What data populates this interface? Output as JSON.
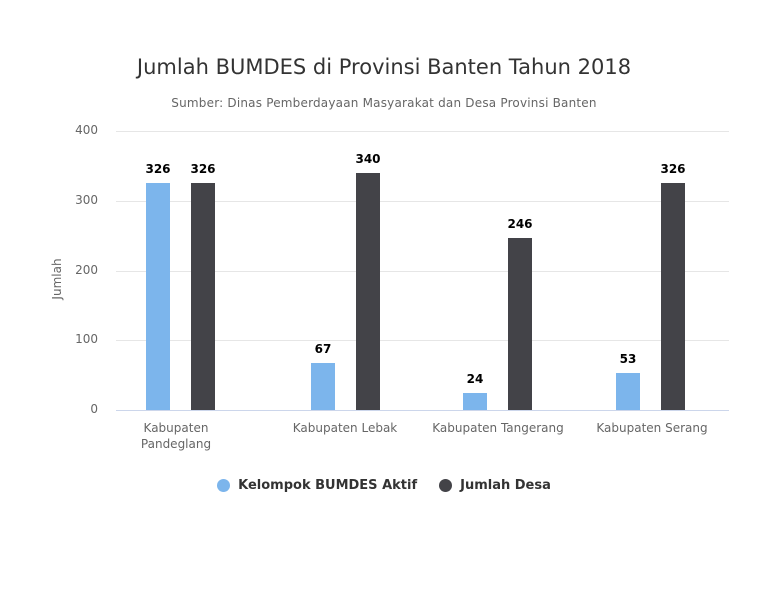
{
  "chart_data": {
    "type": "bar",
    "title": "Jumlah BUMDES di Provinsi Banten Tahun 2018",
    "subtitle": "Sumber: Dinas Pemberdayaan Masyarakat dan Desa Provinsi Banten",
    "xlabel": "",
    "ylabel": "Jumlah",
    "ylim": [
      0,
      400
    ],
    "yticks": [
      "0",
      "100",
      "200",
      "300",
      "400"
    ],
    "grid": true,
    "legend_position": "bottom",
    "categories": [
      "Kabupaten Pandeglang",
      "Kabupaten Lebak",
      "Kabupaten Tangerang",
      "Kabupaten Serang"
    ],
    "category_lines": [
      [
        "Kabupaten",
        "Pandeglang"
      ],
      [
        "Kabupaten Lebak"
      ],
      [
        "Kabupaten Tangerang"
      ],
      [
        "Kabupaten Serang"
      ]
    ],
    "series": [
      {
        "name": "Kelompok BUMDES Aktif",
        "color": "#7cb5ec",
        "values": [
          326,
          67,
          24,
          53
        ]
      },
      {
        "name": "Jumlah Desa",
        "color": "#434348",
        "values": [
          326,
          340,
          246,
          326
        ]
      }
    ]
  }
}
